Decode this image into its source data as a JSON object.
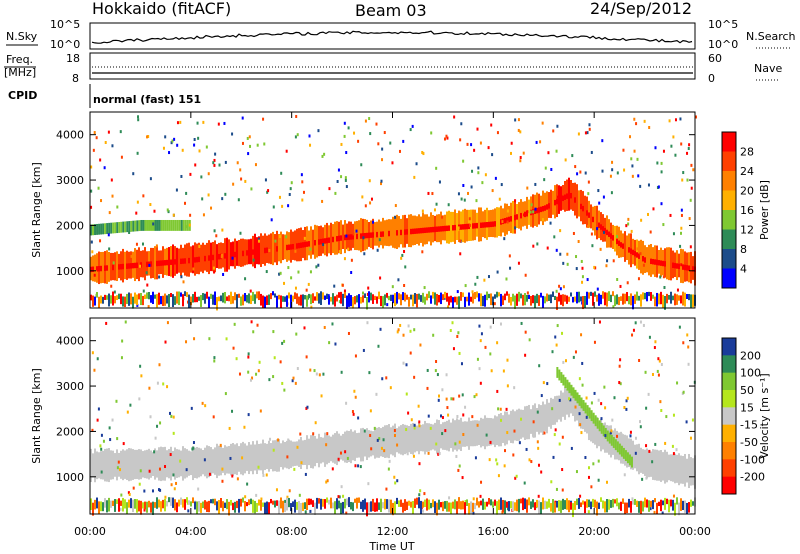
{
  "header": {
    "radar": "Hokkaido (fitACF)",
    "beam": "Beam 03",
    "date": "24/Sep/2012"
  },
  "nsky_panel": {
    "label": "N.Sky",
    "right_label": "N.Search",
    "ticks_left": [
      "10^5",
      "10^0"
    ],
    "ticks_right": [
      "10^5",
      "10^0"
    ]
  },
  "freq_panel": {
    "label_top": "Freq.",
    "label_unit": "[MHz]",
    "ticks_left": [
      "18",
      "8"
    ],
    "ticks_right": [
      "60",
      "0"
    ],
    "right_label": "Nave"
  },
  "cpid_panel": {
    "label": "CPID",
    "mode_text": "normal (fast) 151"
  },
  "chart_data": [
    {
      "type": "heatmap",
      "title": "",
      "parameter": "Power",
      "colorbar_label": "Power [dB]",
      "colorbar_ticks": [
        "28",
        "24",
        "20",
        "16",
        "12",
        "8",
        "4"
      ],
      "colorbar_colors": [
        "#ff0000",
        "#ff4000",
        "#ff8000",
        "#ffb000",
        "#7fc832",
        "#2e8b57",
        "#1c4c8a",
        "#0000ff"
      ],
      "ylabel": "Slant Range [km]",
      "yticks": [
        "4000",
        "3000",
        "2000",
        "1000"
      ],
      "ylim": [
        180,
        4500
      ],
      "xlim": [
        "00:00",
        "24:00"
      ],
      "main_echo_band": {
        "time_hours": [
          0,
          2,
          4,
          6,
          8,
          10,
          12,
          14,
          16,
          18,
          19,
          20,
          21,
          22,
          24
        ],
        "range_km": [
          1050,
          1150,
          1250,
          1400,
          1550,
          1750,
          1850,
          1950,
          2050,
          2400,
          2700,
          2100,
          1600,
          1250,
          1050
        ],
        "power_dB": [
          24,
          26,
          28,
          28,
          26,
          24,
          24,
          22,
          22,
          24,
          28,
          26,
          22,
          24,
          26
        ]
      },
      "secondary_echo_band": {
        "time_hours": [
          0,
          1,
          2,
          3,
          4
        ],
        "range_km": [
          1900,
          1950,
          2000,
          2000,
          2000
        ],
        "power_dB": [
          10,
          12,
          12,
          14,
          12
        ]
      }
    },
    {
      "type": "heatmap",
      "title": "",
      "parameter": "Velocity",
      "colorbar_label": "Velocity [m s⁻¹]",
      "colorbar_ticks": [
        "200",
        "100",
        "50",
        "15",
        "-15",
        "-50",
        "-100",
        "-200"
      ],
      "colorbar_colors": [
        "#1a3c9a",
        "#2e8b57",
        "#7fc832",
        "#b5e61d",
        "#c8c8c8",
        "#ffb000",
        "#ff8000",
        "#ff4000",
        "#ff0000"
      ],
      "ylabel": "Slant Range [km]",
      "yticks": [
        "4000",
        "3000",
        "2000",
        "1000"
      ],
      "ylim": [
        180,
        4500
      ],
      "xlim": [
        "00:00",
        "24:00"
      ],
      "ground_scatter_band": {
        "time_hours": [
          0,
          4,
          8,
          12,
          16,
          18,
          19,
          20,
          22,
          24
        ],
        "range_km": [
          1250,
          1300,
          1500,
          1800,
          2000,
          2300,
          2700,
          2000,
          1300,
          1100
        ],
        "velocity_ms": [
          0,
          0,
          0,
          0,
          0,
          0,
          0,
          0,
          0,
          0
        ]
      },
      "ionospheric_band": {
        "time_hours": [
          18.5,
          19.5,
          20.5,
          21.5
        ],
        "range_km": [
          3300,
          2600,
          1900,
          1300
        ],
        "velocity_ms": [
          50,
          50,
          50,
          50
        ]
      }
    }
  ],
  "x_axis": {
    "label": "Time UT",
    "ticks": [
      "00:00",
      "04:00",
      "08:00",
      "12:00",
      "16:00",
      "20:00",
      "00:00"
    ]
  }
}
